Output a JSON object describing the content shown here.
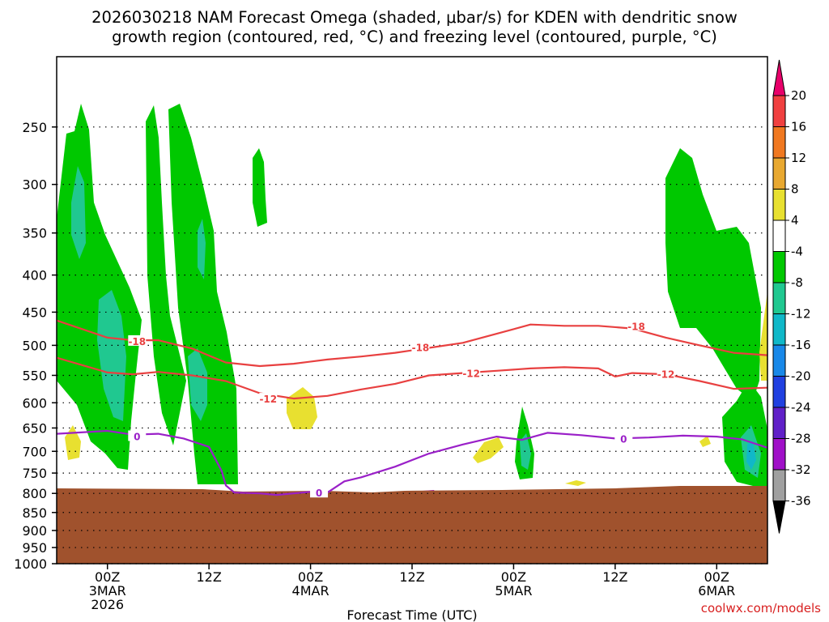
{
  "title": {
    "line1": "2026030218 NAM Forecast Omega (shaded, μbar/s) for KDEN with dendritic snow",
    "line2": "growth region (contoured, red, °C) and freezing level (contoured, purple, °C)"
  },
  "credit": "coolwx.com/models",
  "chart_data": {
    "type": "contour",
    "xlabel": "Forecast Time (UTC)",
    "ylabel": "",
    "x_range_hours": [
      -6,
      78
    ],
    "x_ticks": [
      {
        "hour": 0,
        "lines": [
          "00Z",
          "3MAR",
          "2026"
        ]
      },
      {
        "hour": 12,
        "lines": [
          "12Z"
        ]
      },
      {
        "hour": 24,
        "lines": [
          "00Z",
          "4MAR"
        ]
      },
      {
        "hour": 36,
        "lines": [
          "12Z"
        ]
      },
      {
        "hour": 48,
        "lines": [
          "00Z",
          "5MAR"
        ]
      },
      {
        "hour": 60,
        "lines": [
          "12Z"
        ]
      },
      {
        "hour": 72,
        "lines": [
          "00Z",
          "6MAR"
        ]
      }
    ],
    "y_ticks_hpa": [
      250,
      300,
      350,
      400,
      450,
      500,
      550,
      600,
      650,
      700,
      750,
      800,
      850,
      900,
      950,
      1000
    ],
    "y_range_hpa": [
      200,
      1000
    ],
    "y_scale": "log-pressure (inverted)",
    "grid": "dotted at pressure levels",
    "ground_surface_hpa": 825,
    "ground_color": "#a0522d",
    "colorbar": {
      "levels": [
        20,
        16,
        12,
        8,
        4,
        -4,
        -8,
        -12,
        -16,
        -20,
        -24,
        -28,
        -32,
        -36
      ],
      "colors": [
        "#e8006a",
        "#f04040",
        "#f07820",
        "#e8a830",
        "#e8e030",
        "#ffffff",
        "#00c800",
        "#20c890",
        "#10b8c8",
        "#1888e8",
        "#2040e0",
        "#6020c8",
        "#a010c8",
        "#a0a0a0",
        "#000000"
      ]
    },
    "series": [
      {
        "name": "-18",
        "color": "#e84040",
        "hours": [
          -6,
          0,
          3,
          6,
          10,
          14,
          18,
          22,
          26,
          30,
          34,
          38,
          42,
          46,
          50,
          54,
          58,
          62,
          66,
          70,
          74,
          78
        ],
        "values": [
          462,
          488,
          492,
          492,
          505,
          528,
          534,
          530,
          523,
          518,
          512,
          504,
          496,
          482,
          468,
          470,
          470,
          474,
          488,
          500,
          512,
          516
        ]
      },
      {
        "name": "-12",
        "color": "#e84040",
        "hours": [
          -6,
          0,
          3,
          6,
          10,
          14,
          18,
          22,
          26,
          30,
          34,
          38,
          42,
          46,
          50,
          54,
          58,
          60,
          62,
          66,
          70,
          74,
          78
        ],
        "values": [
          520,
          545,
          548,
          544,
          550,
          560,
          582,
          592,
          587,
          575,
          565,
          550,
          546,
          542,
          538,
          536,
          538,
          552,
          546,
          548,
          560,
          574,
          572
        ]
      },
      {
        "name": "0",
        "color": "#9a20c8",
        "hours": [
          -6,
          0,
          3,
          6,
          9,
          12,
          13.5,
          14,
          15,
          18,
          20,
          22,
          24,
          26,
          28,
          30,
          34,
          38,
          42,
          46,
          49,
          52,
          56,
          60,
          64,
          68,
          72,
          75,
          78
        ],
        "values": [
          662,
          656,
          664,
          662,
          672,
          690,
          745,
          780,
          798,
          800,
          804,
          800,
          796,
          798,
          770,
          760,
          735,
          705,
          685,
          668,
          675,
          660,
          665,
          672,
          670,
          666,
          668,
          674,
          692
        ]
      }
    ],
    "contour_labels": [
      {
        "text": "-18",
        "hour": 3.5,
        "hpa": 493,
        "color": "#e84040"
      },
      {
        "text": "-18",
        "hour": 37,
        "hpa": 503,
        "color": "#e84040"
      },
      {
        "text": "-18",
        "hour": 62.5,
        "hpa": 470,
        "color": "#e84040"
      },
      {
        "text": "-12",
        "hour": 19,
        "hpa": 592,
        "color": "#e84040"
      },
      {
        "text": "-12",
        "hour": 43,
        "hpa": 546,
        "color": "#e84040"
      },
      {
        "text": "-12",
        "hour": 66,
        "hpa": 547,
        "color": "#e84040"
      },
      {
        "text": "0",
        "hour": 3.5,
        "hpa": 667,
        "color": "#9a20c8"
      },
      {
        "text": "0",
        "hour": 25,
        "hpa": 798,
        "color": "#9a20c8"
      },
      {
        "text": "0",
        "hour": 61,
        "hpa": 672,
        "color": "#9a20c8"
      }
    ]
  }
}
